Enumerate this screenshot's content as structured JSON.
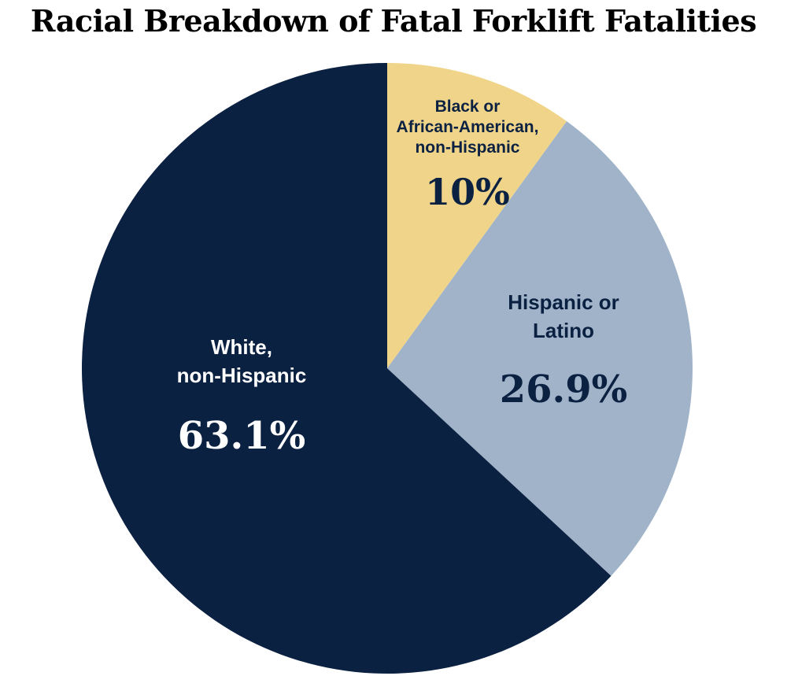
{
  "chart_data": {
    "type": "pie",
    "title": "Racial Breakdown of Fatal Forklift Fatalities",
    "slices": [
      {
        "label": [
          "Black or",
          "African-American,",
          "non-Hispanic"
        ],
        "value": 10.0,
        "display": "10%",
        "color": "#efd48a",
        "text_color": "#0b2141"
      },
      {
        "label": [
          "Hispanic or",
          "Latino"
        ],
        "value": 26.9,
        "display": "26.9%",
        "color": "#a0b3c9",
        "text_color": "#0b2141"
      },
      {
        "label": [
          "White,",
          "non-Hispanic"
        ],
        "value": 63.1,
        "display": "63.1%",
        "color": "#0b2141",
        "text_color": "#ffffff"
      }
    ]
  }
}
